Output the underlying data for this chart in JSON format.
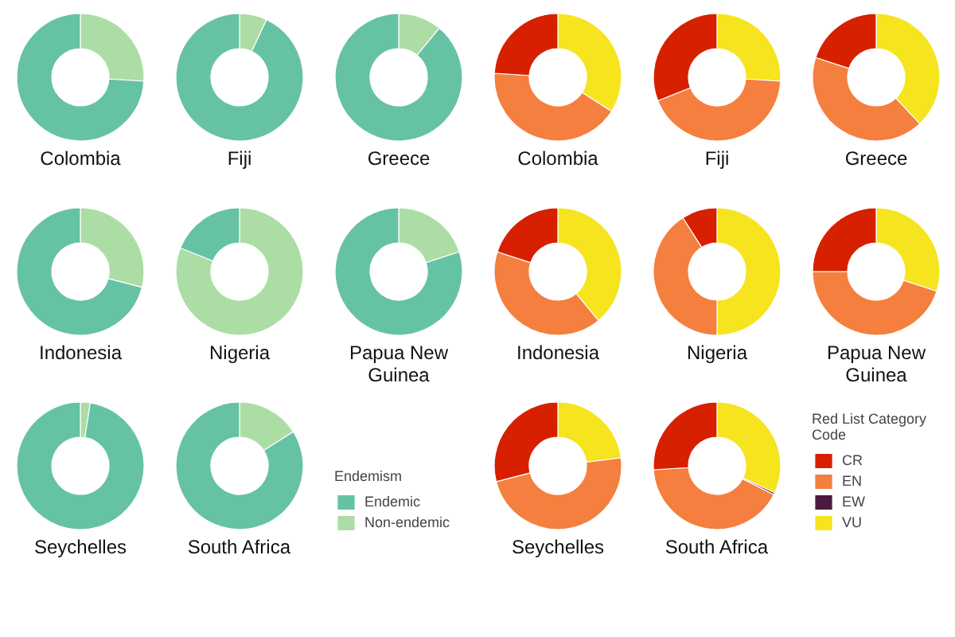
{
  "chart_data": [
    {
      "type": "donut",
      "title": "Colombia",
      "categories": [
        null,
        null
      ],
      "values": [
        74,
        26
      ],
      "colors": [
        "#66c2a5",
        "#abdda4"
      ]
    },
    {
      "type": "donut",
      "title": "Fiji",
      "categories": [
        null,
        null
      ],
      "values": [
        93,
        7
      ],
      "colors": [
        "#66c2a5",
        "#abdda4"
      ]
    },
    {
      "type": "donut",
      "title": "Greece",
      "categories": [
        null,
        null
      ],
      "values": [
        89,
        11
      ],
      "colors": [
        "#66c2a5",
        "#abdda4"
      ]
    },
    {
      "type": "donut",
      "title": "Colombia",
      "categories": [
        null,
        null,
        null,
        null
      ],
      "values": [
        24,
        42,
        0,
        34
      ],
      "colors": [
        "#d62000",
        "#f47f3e",
        "#4c1a40",
        "#f6e41e"
      ]
    },
    {
      "type": "donut",
      "title": "Fiji",
      "categories": [
        null,
        null,
        null,
        null
      ],
      "values": [
        31,
        43,
        0,
        26
      ],
      "colors": [
        "#d62000",
        "#f47f3e",
        "#4c1a40",
        "#f6e41e"
      ]
    },
    {
      "type": "donut",
      "title": "Greece",
      "categories": [
        null,
        null,
        null,
        null
      ],
      "values": [
        20,
        42,
        0,
        38
      ],
      "colors": [
        "#d62000",
        "#f47f3e",
        "#4c1a40",
        "#f6e41e"
      ]
    },
    {
      "type": "donut",
      "title": "Indonesia",
      "categories": [
        null,
        null
      ],
      "values": [
        71,
        29
      ],
      "colors": [
        "#66c2a5",
        "#abdda4"
      ]
    },
    {
      "type": "donut",
      "title": "Nigeria",
      "categories": [
        null,
        null
      ],
      "values": [
        19,
        81
      ],
      "colors": [
        "#66c2a5",
        "#abdda4"
      ]
    },
    {
      "type": "donut",
      "title": "Papua New Guinea",
      "categories": [
        null,
        null
      ],
      "values": [
        80,
        20
      ],
      "colors": [
        "#66c2a5",
        "#abdda4"
      ]
    },
    {
      "type": "donut",
      "title": "Indonesia",
      "categories": [
        null,
        null,
        null,
        null
      ],
      "values": [
        20,
        41,
        0,
        39
      ],
      "colors": [
        "#d62000",
        "#f47f3e",
        "#4c1a40",
        "#f6e41e"
      ]
    },
    {
      "type": "donut",
      "title": "Nigeria",
      "categories": [
        null,
        null,
        null,
        null
      ],
      "values": [
        9,
        41,
        0,
        50
      ],
      "colors": [
        "#d62000",
        "#f47f3e",
        "#4c1a40",
        "#f6e41e"
      ]
    },
    {
      "type": "donut",
      "title": "Papua New Guinea",
      "categories": [
        null,
        null,
        null,
        null
      ],
      "values": [
        25,
        45,
        0,
        30
      ],
      "colors": [
        "#d62000",
        "#f47f3e",
        "#4c1a40",
        "#f6e41e"
      ]
    },
    {
      "type": "donut",
      "title": "Seychelles",
      "categories": [
        null,
        null
      ],
      "values": [
        97.5,
        2.5
      ],
      "colors": [
        "#66c2a5",
        "#abdda4"
      ]
    },
    {
      "type": "donut",
      "title": "South Africa",
      "categories": [
        "Endemic",
        "Non-endemic"
      ],
      "values": [
        84,
        16
      ],
      "colors": [
        "#66c2a5",
        "#abdda4"
      ],
      "legend": "right",
      "legend_title": "Endemism"
    },
    {
      "type": "donut",
      "title": "Seychelles",
      "categories": [
        null,
        null,
        null,
        null
      ],
      "values": [
        29,
        48,
        0,
        23
      ],
      "colors": [
        "#d62000",
        "#f47f3e",
        "#4c1a40",
        "#f6e41e"
      ]
    },
    {
      "type": "donut",
      "title": "South Africa",
      "categories": [
        "CR",
        "EN",
        "EW",
        "VU"
      ],
      "values": [
        26,
        41.5,
        0.5,
        32
      ],
      "colors": [
        "#d62000",
        "#f47f3e",
        "#4c1a40",
        "#f6e41e"
      ],
      "legend": "right",
      "legend_title": "Red List Category Code"
    }
  ]
}
